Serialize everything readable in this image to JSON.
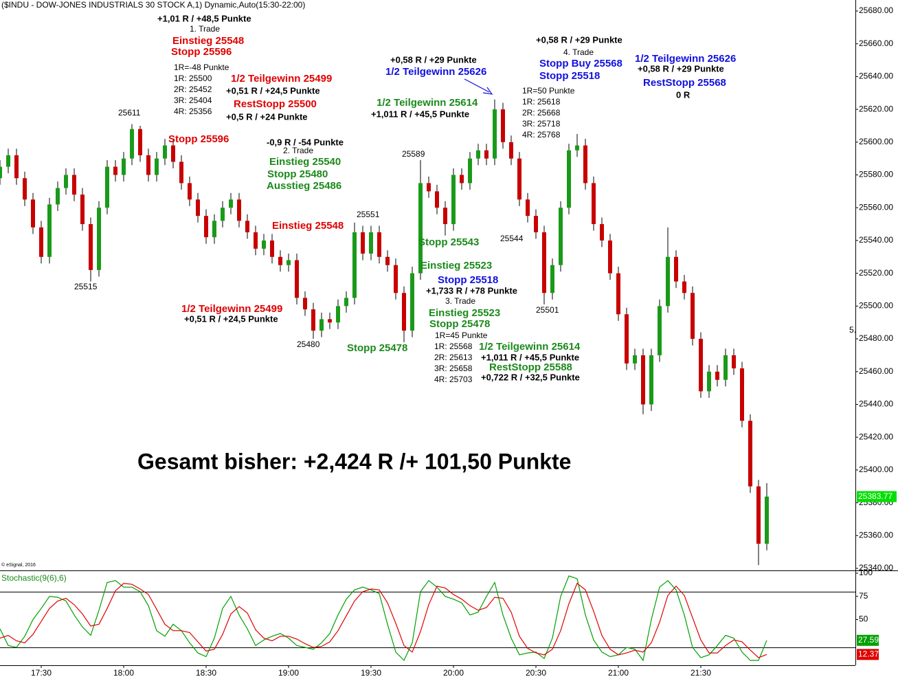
{
  "chart_data": [
    {
      "type": "candlestick",
      "title": "($INDU - DOW-JONES INDUSTRIALS 30 STOCK A,1) Dynamic,Auto(15:30-22:00)",
      "credit": "© eSignal, 2016",
      "up_color": "#1a9a1a",
      "down_color": "#c80000",
      "wick_color": "#000000",
      "last_price_color": "#00e000",
      "xlim": [
        0,
        103.75
      ],
      "ylim": [
        25340,
        25680
      ],
      "yticks": [
        {
          "value": 25340,
          "label": "25340.00"
        },
        {
          "value": 25360,
          "label": "25360.00"
        },
        {
          "value": 25380,
          "label": "25380.00"
        },
        {
          "value": 25400,
          "label": "25400.00"
        },
        {
          "value": 25420,
          "label": "25420.00"
        },
        {
          "value": 25440,
          "label": "25440.00"
        },
        {
          "value": 25460,
          "label": "25460.00"
        },
        {
          "value": 25480,
          "label": "25480.00"
        },
        {
          "value": 25500,
          "label": "25500.00"
        },
        {
          "value": 25520,
          "label": "25520.00"
        },
        {
          "value": 25540,
          "label": "25540.00"
        },
        {
          "value": 25560,
          "label": "25560.00"
        },
        {
          "value": 25580,
          "label": "25580.00"
        },
        {
          "value": 25600,
          "label": "25600.00"
        },
        {
          "value": 25620,
          "label": "25620.00"
        },
        {
          "value": 25640,
          "label": "25640.00"
        },
        {
          "value": 25660,
          "label": "25660.00"
        },
        {
          "value": 25680,
          "label": "25680.00"
        }
      ],
      "open": [
        25578,
        25585,
        25592,
        25578,
        25565,
        25548,
        25530,
        25562,
        25572,
        25580,
        25568,
        25550,
        25522,
        25560,
        25585,
        25580,
        25590,
        25608,
        25592,
        25580,
        25590,
        25598,
        25588,
        25575,
        25565,
        25555,
        25542,
        25552,
        25560,
        25565,
        25552,
        25545,
        25535,
        25540,
        25530,
        25525,
        25528,
        25505,
        25498,
        25485,
        25492,
        25490,
        25500,
        25505,
        25545,
        25532,
        25545,
        25530,
        25525,
        25508,
        25485,
        25520,
        25575,
        25570,
        25560,
        25550,
        25580,
        25575,
        25590,
        25595,
        25590,
        25620,
        25600,
        25590,
        25565,
        25555,
        25545,
        25508,
        25525,
        25560,
        25595,
        25598,
        25575,
        25550,
        25540,
        25520,
        25495,
        25465,
        25470,
        25440,
        25470,
        25500,
        25530,
        25515,
        25508,
        25480,
        25448,
        25460,
        25455,
        25470,
        25462,
        25430,
        25390,
        25355
      ],
      "high": [
        25589,
        25596,
        25596,
        25582,
        25569,
        25552,
        25566,
        25576,
        25584,
        25584,
        25572,
        25554,
        25564,
        25589,
        25589,
        25594,
        25611,
        25610,
        25596,
        25594,
        25602,
        25602,
        25592,
        25579,
        25569,
        25559,
        25556,
        25564,
        25569,
        25569,
        25556,
        25549,
        25544,
        25544,
        25534,
        25532,
        25532,
        25509,
        25502,
        25496,
        25496,
        25504,
        25509,
        25551,
        25549,
        25549,
        25549,
        25534,
        25529,
        25512,
        25524,
        25589,
        25579,
        25574,
        25564,
        25584,
        25584,
        25594,
        25599,
        25599,
        25626,
        25624,
        25604,
        25594,
        25569,
        25559,
        25549,
        25529,
        25564,
        25599,
        25605,
        25602,
        25579,
        25554,
        25544,
        25524,
        25499,
        25474,
        25474,
        25474,
        25504,
        25548,
        25534,
        25519,
        25512,
        25484,
        25464,
        25464,
        25474,
        25474,
        25466,
        25434,
        25394,
        25392
      ],
      "low": [
        25574,
        25581,
        25574,
        25561,
        25544,
        25526,
        25526,
        25558,
        25568,
        25564,
        25546,
        25515,
        25518,
        25556,
        25576,
        25576,
        25586,
        25588,
        25576,
        25576,
        25586,
        25584,
        25571,
        25561,
        25551,
        25538,
        25538,
        25548,
        25556,
        25548,
        25541,
        25531,
        25531,
        25526,
        25521,
        25521,
        25501,
        25494,
        25480,
        25481,
        25486,
        25486,
        25496,
        25501,
        25528,
        25528,
        25526,
        25521,
        25504,
        25478,
        25481,
        25516,
        25566,
        25556,
        25543,
        25546,
        25571,
        25571,
        25586,
        25586,
        25586,
        25596,
        25586,
        25561,
        25551,
        25541,
        25501,
        25504,
        25521,
        25556,
        25591,
        25571,
        25546,
        25536,
        25516,
        25491,
        25461,
        25461,
        25434,
        25436,
        25466,
        25496,
        25511,
        25504,
        25476,
        25444,
        25444,
        25451,
        25451,
        25458,
        25426,
        25386,
        25342,
        25351
      ],
      "close": [
        25585,
        25592,
        25578,
        25565,
        25548,
        25530,
        25562,
        25572,
        25580,
        25568,
        25550,
        25522,
        25560,
        25585,
        25580,
        25590,
        25608,
        25592,
        25580,
        25590,
        25598,
        25588,
        25575,
        25565,
        25555,
        25542,
        25552,
        25560,
        25565,
        25552,
        25545,
        25535,
        25540,
        25530,
        25525,
        25528,
        25505,
        25498,
        25485,
        25492,
        25490,
        25500,
        25505,
        25545,
        25532,
        25545,
        25530,
        25525,
        25508,
        25485,
        25520,
        25575,
        25570,
        25560,
        25550,
        25580,
        25575,
        25590,
        25595,
        25590,
        25620,
        25600,
        25590,
        25565,
        25555,
        25545,
        25508,
        25525,
        25560,
        25595,
        25598,
        25575,
        25550,
        25540,
        25520,
        25495,
        25465,
        25470,
        25440,
        25470,
        25500,
        25530,
        25515,
        25508,
        25480,
        25448,
        25460,
        25455,
        25470,
        25462,
        25430,
        25390,
        25355,
        25383.77
      ],
      "annotations": [
        {
          "text": "+1,01 R / +48,5 Punkte",
          "color": "#000000"
        },
        {
          "text": "1. Trade",
          "color": "#000000"
        },
        {
          "text": "Einstieg 25548",
          "color": "#e00000"
        },
        {
          "text": "Stopp 25596",
          "color": "#e00000"
        },
        {
          "text": "1R=-48 Punkte",
          "color": "#000000"
        },
        {
          "text": "1R: 25500",
          "color": "#000000"
        },
        {
          "text": "2R: 25452",
          "color": "#000000"
        },
        {
          "text": "3R: 25404",
          "color": "#000000"
        },
        {
          "text": "4R: 25356",
          "color": "#000000"
        },
        {
          "text": "1/2 Teilgewinn 25499",
          "color": "#e00000"
        },
        {
          "text": "+0,51 R / +24,5 Punkte",
          "color": "#000000"
        },
        {
          "text": "RestStopp 25500",
          "color": "#e00000"
        },
        {
          "text": "+0,5 R / +24 Punkte",
          "color": "#000000"
        },
        {
          "text": "25611",
          "color": "#000000"
        },
        {
          "text": "Stopp 25596",
          "color": "#e00000"
        },
        {
          "text": "-0,9 R / -54 Punkte",
          "color": "#000000"
        },
        {
          "text": "2. Trade",
          "color": "#000000"
        },
        {
          "text": "Einstieg 25540",
          "color": "#1a8a1a"
        },
        {
          "text": "Stopp 25480",
          "color": "#1a8a1a"
        },
        {
          "text": "Ausstieg 25486",
          "color": "#1a8a1a"
        },
        {
          "text": "Einstieg 25548",
          "color": "#e00000"
        },
        {
          "text": "25515",
          "color": "#000000"
        },
        {
          "text": "1/2 Teilgewinn 25499",
          "color": "#e00000"
        },
        {
          "text": "+0,51 R / +24,5 Punkte",
          "color": "#000000"
        },
        {
          "text": "25480",
          "color": "#000000"
        },
        {
          "text": "25551",
          "color": "#000000"
        },
        {
          "text": "Stopp 25478",
          "color": "#1a8a1a"
        },
        {
          "text": "25589",
          "color": "#000000"
        },
        {
          "text": "+0,58 R / +29 Punkte",
          "color": "#000000"
        },
        {
          "text": "1/2 Teilgewinn 25626",
          "color": "#1010e0"
        },
        {
          "text": "1/2 Teilgewinn 25614",
          "color": "#1a8a1a"
        },
        {
          "text": "+1,011 R / +45,5 Punkte",
          "color": "#000000"
        },
        {
          "text": "Stopp 25543",
          "color": "#1a8a1a"
        },
        {
          "text": "25544",
          "color": "#000000"
        },
        {
          "text": "Einstieg 25523",
          "color": "#1a8a1a"
        },
        {
          "text": "Stopp 25518",
          "color": "#1010e0"
        },
        {
          "text": "+1,733 R / +78 Punkte",
          "color": "#000000"
        },
        {
          "text": "3. Trade",
          "color": "#000000"
        },
        {
          "text": "Einstieg 25523",
          "color": "#1a8a1a"
        },
        {
          "text": "Stopp 25478",
          "color": "#1a8a1a"
        },
        {
          "text": "1R=45 Punkte",
          "color": "#000000"
        },
        {
          "text": "1R: 25568",
          "color": "#000000"
        },
        {
          "text": "2R: 25613",
          "color": "#000000"
        },
        {
          "text": "3R: 25658",
          "color": "#000000"
        },
        {
          "text": "4R: 25703",
          "color": "#000000"
        },
        {
          "text": "1/2 Teilgewinn 25614",
          "color": "#1a8a1a"
        },
        {
          "text": "+1,011 R / +45,5 Punkte",
          "color": "#000000"
        },
        {
          "text": "RestStopp 25588",
          "color": "#1a8a1a"
        },
        {
          "text": "+0,722 R / +32,5 Punkte",
          "color": "#000000"
        },
        {
          "text": "25501",
          "color": "#000000"
        },
        {
          "text": "+0,58 R / +29 Punkte",
          "color": "#000000"
        },
        {
          "text": "4. Trade",
          "color": "#000000"
        },
        {
          "text": "Stopp Buy 25568",
          "color": "#1010e0"
        },
        {
          "text": "Stopp 25518",
          "color": "#1010e0"
        },
        {
          "text": "1R=50 Punkte",
          "color": "#000000"
        },
        {
          "text": "1R: 25618",
          "color": "#000000"
        },
        {
          "text": "2R: 25668",
          "color": "#000000"
        },
        {
          "text": "3R: 25718",
          "color": "#000000"
        },
        {
          "text": "4R: 25768",
          "color": "#000000"
        },
        {
          "text": "1/2 Teilgewinn 25626",
          "color": "#1010e0"
        },
        {
          "text": "+0,58 R / +29 Punkte",
          "color": "#000000"
        },
        {
          "text": "RestStopp 25568",
          "color": "#1010e0"
        },
        {
          "text": "0 R",
          "color": "#000000"
        },
        {
          "text": "Gesamt bisher: +2,424 R /+ 101,50 Punkte",
          "color": "#000000"
        },
        {
          "text": "5.",
          "color": "#000000"
        }
      ]
    },
    {
      "type": "line",
      "title": "Stochastic(9(6),6)",
      "title_color": "#1a8a1a",
      "xlim": [
        0,
        103.75
      ],
      "xticks": [
        {
          "value": 5,
          "label": "17:30"
        },
        {
          "value": 15,
          "label": "18:00"
        },
        {
          "value": 25,
          "label": "18:30"
        },
        {
          "value": 35,
          "label": "19:00"
        },
        {
          "value": 45,
          "label": "19:30"
        },
        {
          "value": 55,
          "label": "20:00"
        },
        {
          "value": 65,
          "label": "20:30"
        },
        {
          "value": 75,
          "label": "21:00"
        },
        {
          "value": 85,
          "label": "21:30"
        }
      ],
      "ylim": [
        0,
        100
      ],
      "yticks": [
        100,
        75,
        50
      ],
      "levels": [
        80,
        20
      ],
      "series": [
        {
          "color": "#00a000",
          "values": [
            40,
            22,
            20,
            32,
            50,
            62,
            75,
            74,
            70,
            55,
            42,
            33,
            60,
            90,
            92,
            85,
            85,
            80,
            65,
            38,
            32,
            45,
            38,
            25,
            14,
            10,
            30,
            62,
            75,
            55,
            40,
            22,
            28,
            32,
            35,
            30,
            22,
            20,
            18,
            25,
            35,
            55,
            72,
            82,
            85,
            82,
            78,
            45,
            15,
            6,
            25,
            80,
            92,
            85,
            75,
            72,
            68,
            55,
            58,
            75,
            90,
            55,
            30,
            12,
            14,
            15,
            8,
            30,
            75,
            97,
            94,
            55,
            28,
            15,
            10,
            12,
            20,
            18,
            6,
            50,
            85,
            92,
            82,
            55,
            20,
            9,
            12,
            22,
            33,
            30,
            15,
            6,
            6,
            27.59
          ]
        },
        {
          "color": "#e00000",
          "values": [
            30,
            33,
            27,
            25,
            34,
            48,
            62,
            70,
            73,
            66,
            56,
            43,
            45,
            62,
            81,
            89,
            88,
            83,
            77,
            61,
            45,
            38,
            38,
            36,
            26,
            16,
            18,
            34,
            56,
            64,
            57,
            39,
            30,
            27,
            32,
            32,
            29,
            24,
            20,
            21,
            26,
            38,
            54,
            70,
            80,
            83,
            82,
            68,
            46,
            22,
            15,
            37,
            66,
            86,
            84,
            77,
            72,
            65,
            60,
            63,
            74,
            73,
            58,
            32,
            19,
            14,
            12,
            18,
            38,
            67,
            89,
            82,
            59,
            33,
            18,
            12,
            14,
            17,
            15,
            25,
            47,
            76,
            86,
            76,
            52,
            28,
            14,
            14,
            22,
            28,
            26,
            17,
            9,
            12.37
          ]
        }
      ]
    }
  ]
}
